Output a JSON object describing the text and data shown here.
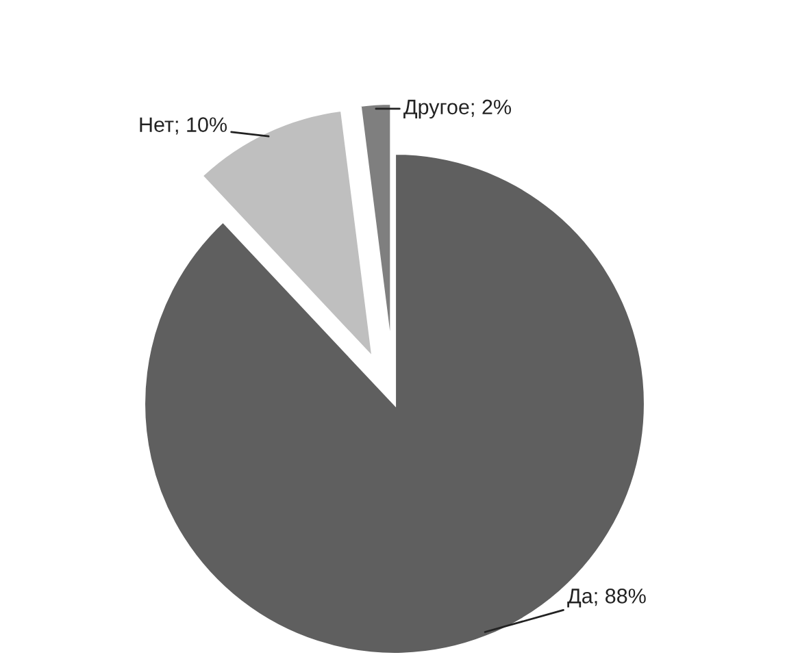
{
  "chart_data": {
    "type": "pie",
    "categories": [
      "Да",
      "Нет",
      "Другое"
    ],
    "values": [
      88,
      10,
      2
    ],
    "value_labels": [
      "88%",
      "10%",
      "2%"
    ],
    "colors": [
      "#5f5f5f",
      "#bfbfbf",
      "#7f7f7f"
    ]
  }
}
